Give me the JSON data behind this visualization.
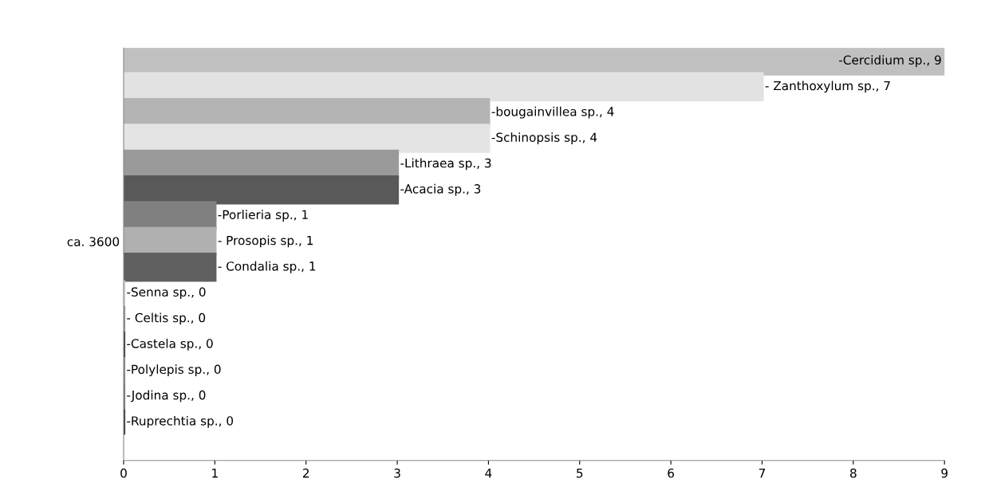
{
  "chart_data": {
    "type": "bar",
    "orientation": "horizontal",
    "categories": [
      "ca. 3600"
    ],
    "xlim": [
      0,
      9
    ],
    "xticks": [
      0,
      1,
      2,
      3,
      4,
      5,
      6,
      7,
      8,
      9
    ],
    "grid": false,
    "legend": false,
    "series": [
      {
        "color": "#c0c0c0",
        "values": [
          9
        ],
        "value_labels": [
          "-Cercidium sp., 9"
        ]
      },
      {
        "color": "#e2e2e2",
        "values": [
          7
        ],
        "value_labels": [
          "- Zanthoxylum sp., 7"
        ]
      },
      {
        "color": "#b4b4b4",
        "values": [
          4
        ],
        "value_labels": [
          "-bougainvillea sp., 4"
        ]
      },
      {
        "color": "#e4e4e4",
        "values": [
          4
        ],
        "value_labels": [
          "-Schinopsis sp., 4"
        ]
      },
      {
        "color": "#9a9a9a",
        "values": [
          3
        ],
        "value_labels": [
          "-Lithraea sp., 3"
        ]
      },
      {
        "color": "#595959",
        "values": [
          3
        ],
        "value_labels": [
          "-Acacia sp., 3"
        ]
      },
      {
        "color": "#808080",
        "values": [
          1
        ],
        "value_labels": [
          "-Porlieria sp., 1"
        ]
      },
      {
        "color": "#b0b0b0",
        "values": [
          1
        ],
        "value_labels": [
          "- Prosopis sp., 1"
        ]
      },
      {
        "color": "#606060",
        "values": [
          1
        ],
        "value_labels": [
          "- Condalia sp., 1"
        ]
      },
      {
        "color": "#d0d0d0",
        "values": [
          0
        ],
        "value_labels": [
          "-Senna sp., 0"
        ]
      },
      {
        "color": "#909090",
        "values": [
          0
        ],
        "value_labels": [
          "- Celtis sp., 0"
        ]
      },
      {
        "color": "#404040",
        "values": [
          0
        ],
        "value_labels": [
          "-Castela sp., 0"
        ]
      },
      {
        "color": "#8a8a8a",
        "values": [
          0
        ],
        "value_labels": [
          "-Polylepis sp., 0"
        ]
      },
      {
        "color": "#7a7a7a",
        "values": [
          0
        ],
        "value_labels": [
          "-Jodina sp., 0"
        ]
      },
      {
        "color": "#3a3a3a",
        "values": [
          0
        ],
        "value_labels": [
          "-Ruprechtia sp., 0"
        ]
      }
    ]
  }
}
